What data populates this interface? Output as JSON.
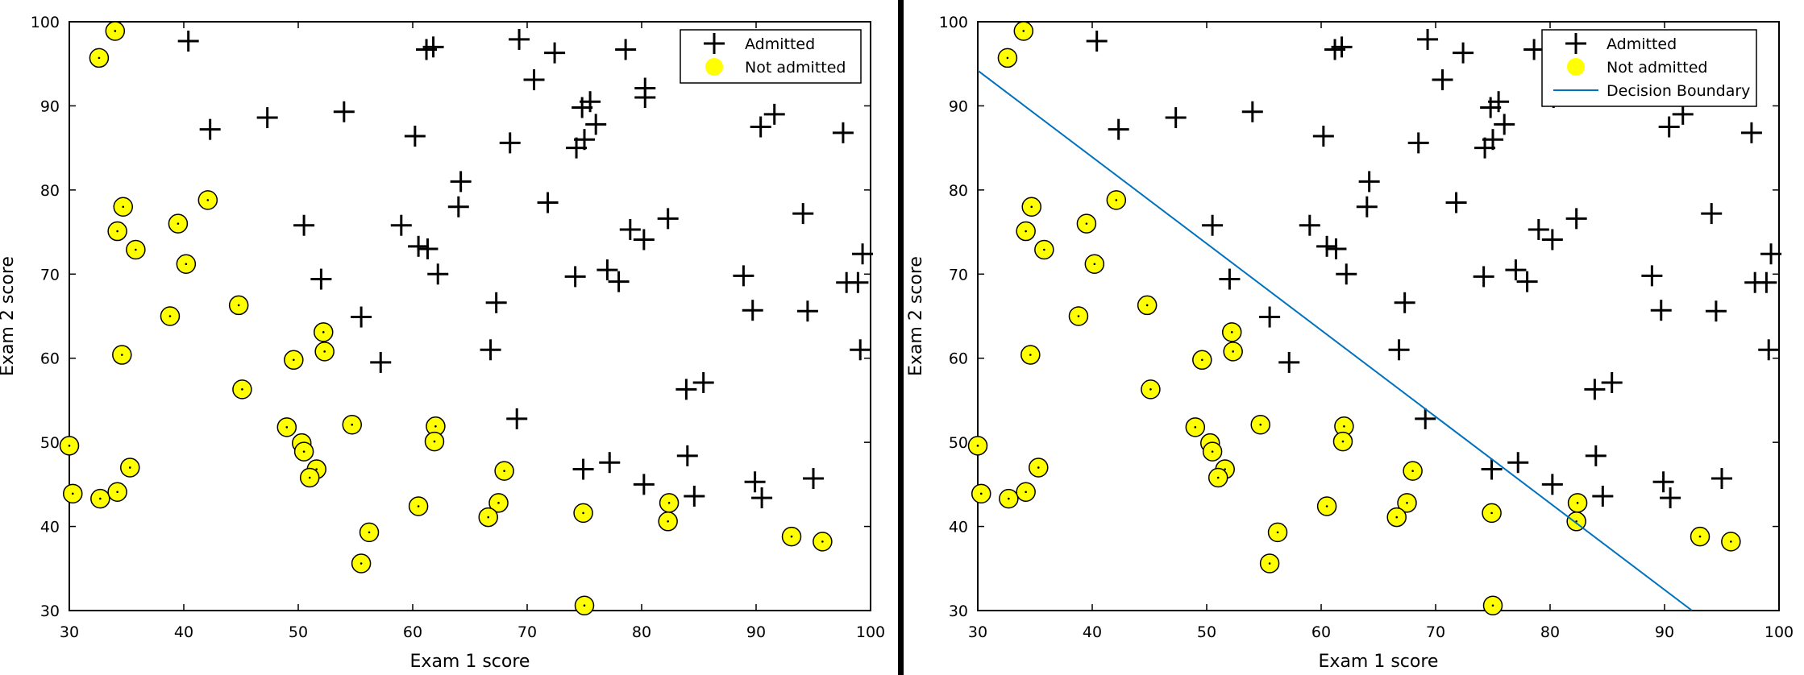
{
  "colors": {
    "admitted": "#000000",
    "not_admitted_fill": "#ffff00",
    "not_admitted_stroke": "#000000",
    "boundary": "#0072bd",
    "axes": "#000000",
    "background": "#ffffff",
    "divider": "#000000"
  },
  "chart_data": [
    {
      "type": "scatter",
      "xlabel": "Exam 1 score",
      "ylabel": "Exam 2 score",
      "xlim": [
        30,
        100
      ],
      "ylim": [
        30,
        100
      ],
      "xticks": [
        "30",
        "40",
        "50",
        "60",
        "70",
        "80",
        "90",
        "100"
      ],
      "yticks": [
        "30",
        "40",
        "50",
        "60",
        "70",
        "80",
        "90",
        "100"
      ],
      "grid": false,
      "legend_position": "top-right",
      "legend": [
        "Admitted",
        "Not admitted"
      ],
      "series": [
        {
          "name": "Admitted",
          "marker": "plus",
          "points": [
            [
              40.4,
              97.7
            ],
            [
              47.3,
              88.6
            ],
            [
              42.3,
              87.2
            ],
            [
              54.0,
              89.3
            ],
            [
              60.2,
              86.4
            ],
            [
              61.2,
              96.7
            ],
            [
              61.8,
              97.0
            ],
            [
              69.3,
              97.9
            ],
            [
              72.4,
              96.3
            ],
            [
              78.6,
              96.7
            ],
            [
              70.6,
              93.1
            ],
            [
              80.3,
              92.1
            ],
            [
              75.5,
              90.5
            ],
            [
              74.8,
              89.8
            ],
            [
              80.3,
              91.0
            ],
            [
              90.4,
              87.5
            ],
            [
              91.6,
              89.0
            ],
            [
              97.6,
              86.8
            ],
            [
              68.5,
              85.6
            ],
            [
              74.3,
              85.0
            ],
            [
              75.0,
              86.0
            ],
            [
              76.0,
              87.8
            ],
            [
              64.2,
              81.0
            ],
            [
              64.0,
              78.0
            ],
            [
              71.8,
              78.5
            ],
            [
              82.3,
              76.6
            ],
            [
              94.1,
              77.2
            ],
            [
              50.5,
              75.8
            ],
            [
              59.0,
              75.8
            ],
            [
              79.0,
              75.3
            ],
            [
              80.2,
              74.1
            ],
            [
              60.5,
              73.3
            ],
            [
              61.3,
              73.0
            ],
            [
              99.3,
              72.4
            ],
            [
              52.0,
              69.4
            ],
            [
              62.2,
              70.0
            ],
            [
              74.2,
              69.7
            ],
            [
              77.0,
              70.5
            ],
            [
              78.0,
              69.1
            ],
            [
              88.9,
              69.8
            ],
            [
              97.9,
              69.0
            ],
            [
              98.9,
              69.0
            ],
            [
              89.7,
              65.7
            ],
            [
              94.5,
              65.6
            ],
            [
              55.5,
              64.9
            ],
            [
              67.3,
              66.6
            ],
            [
              66.8,
              61.0
            ],
            [
              99.1,
              61.0
            ],
            [
              57.2,
              59.5
            ],
            [
              83.9,
              56.3
            ],
            [
              85.4,
              57.1
            ],
            [
              69.1,
              52.8
            ],
            [
              84.0,
              48.4
            ],
            [
              74.9,
              46.8
            ],
            [
              77.2,
              47.6
            ],
            [
              95.0,
              45.7
            ],
            [
              80.2,
              45.0
            ],
            [
              89.9,
              45.3
            ],
            [
              84.6,
              43.6
            ],
            [
              90.5,
              43.4
            ]
          ]
        },
        {
          "name": "Not admitted",
          "marker": "circle",
          "points": [
            [
              34.0,
              98.9
            ],
            [
              32.6,
              95.7
            ],
            [
              34.7,
              78.0
            ],
            [
              34.2,
              75.1
            ],
            [
              35.8,
              72.9
            ],
            [
              42.1,
              78.8
            ],
            [
              39.5,
              76.0
            ],
            [
              40.2,
              71.2
            ],
            [
              38.8,
              65.0
            ],
            [
              44.8,
              66.3
            ],
            [
              34.6,
              60.4
            ],
            [
              49.6,
              59.8
            ],
            [
              52.2,
              63.1
            ],
            [
              52.3,
              60.8
            ],
            [
              45.1,
              56.3
            ],
            [
              30.0,
              49.6
            ],
            [
              35.3,
              47.0
            ],
            [
              30.3,
              43.9
            ],
            [
              32.7,
              43.3
            ],
            [
              34.2,
              44.1
            ],
            [
              49.0,
              51.8
            ],
            [
              50.3,
              49.9
            ],
            [
              50.5,
              48.9
            ],
            [
              51.6,
              46.8
            ],
            [
              51.0,
              45.8
            ],
            [
              54.7,
              52.1
            ],
            [
              62.0,
              51.9
            ],
            [
              61.9,
              50.1
            ],
            [
              60.5,
              42.4
            ],
            [
              56.2,
              39.3
            ],
            [
              55.5,
              35.6
            ],
            [
              68.0,
              46.6
            ],
            [
              67.5,
              42.8
            ],
            [
              66.6,
              41.1
            ],
            [
              74.9,
              41.6
            ],
            [
              82.4,
              42.8
            ],
            [
              82.3,
              40.6
            ],
            [
              93.1,
              38.8
            ],
            [
              95.8,
              38.2
            ],
            [
              75.0,
              30.6
            ]
          ]
        }
      ]
    },
    {
      "type": "scatter",
      "xlabel": "Exam 1 score",
      "ylabel": "Exam 2 score",
      "xlim": [
        30,
        100
      ],
      "ylim": [
        30,
        100
      ],
      "xticks": [
        "30",
        "40",
        "50",
        "60",
        "70",
        "80",
        "90",
        "100"
      ],
      "yticks": [
        "30",
        "40",
        "50",
        "60",
        "70",
        "80",
        "90",
        "100"
      ],
      "grid": false,
      "legend_position": "top-right",
      "legend": [
        "Admitted",
        "Not admitted",
        "Decision Boundary"
      ],
      "series": [
        {
          "name": "Admitted",
          "marker": "plus",
          "points": [
            [
              40.4,
              97.7
            ],
            [
              47.3,
              88.6
            ],
            [
              42.3,
              87.2
            ],
            [
              54.0,
              89.3
            ],
            [
              60.2,
              86.4
            ],
            [
              61.2,
              96.7
            ],
            [
              61.8,
              97.0
            ],
            [
              69.3,
              97.9
            ],
            [
              72.4,
              96.3
            ],
            [
              78.6,
              96.7
            ],
            [
              70.6,
              93.1
            ],
            [
              80.3,
              92.1
            ],
            [
              75.5,
              90.5
            ],
            [
              74.8,
              89.8
            ],
            [
              80.3,
              91.0
            ],
            [
              90.4,
              87.5
            ],
            [
              91.6,
              89.0
            ],
            [
              97.6,
              86.8
            ],
            [
              68.5,
              85.6
            ],
            [
              74.3,
              85.0
            ],
            [
              75.0,
              86.0
            ],
            [
              76.0,
              87.8
            ],
            [
              64.2,
              81.0
            ],
            [
              64.0,
              78.0
            ],
            [
              71.8,
              78.5
            ],
            [
              82.3,
              76.6
            ],
            [
              94.1,
              77.2
            ],
            [
              50.5,
              75.8
            ],
            [
              59.0,
              75.8
            ],
            [
              79.0,
              75.3
            ],
            [
              80.2,
              74.1
            ],
            [
              60.5,
              73.3
            ],
            [
              61.3,
              73.0
            ],
            [
              99.3,
              72.4
            ],
            [
              52.0,
              69.4
            ],
            [
              62.2,
              70.0
            ],
            [
              74.2,
              69.7
            ],
            [
              77.0,
              70.5
            ],
            [
              78.0,
              69.1
            ],
            [
              88.9,
              69.8
            ],
            [
              97.9,
              69.0
            ],
            [
              98.9,
              69.0
            ],
            [
              89.7,
              65.7
            ],
            [
              94.5,
              65.6
            ],
            [
              55.5,
              64.9
            ],
            [
              67.3,
              66.6
            ],
            [
              66.8,
              61.0
            ],
            [
              99.1,
              61.0
            ],
            [
              57.2,
              59.5
            ],
            [
              83.9,
              56.3
            ],
            [
              85.4,
              57.1
            ],
            [
              69.1,
              52.8
            ],
            [
              84.0,
              48.4
            ],
            [
              74.9,
              46.8
            ],
            [
              77.2,
              47.6
            ],
            [
              95.0,
              45.7
            ],
            [
              80.2,
              45.0
            ],
            [
              89.9,
              45.3
            ],
            [
              84.6,
              43.6
            ],
            [
              90.5,
              43.4
            ]
          ]
        },
        {
          "name": "Not admitted",
          "marker": "circle",
          "points": [
            [
              34.0,
              98.9
            ],
            [
              32.6,
              95.7
            ],
            [
              34.7,
              78.0
            ],
            [
              34.2,
              75.1
            ],
            [
              35.8,
              72.9
            ],
            [
              42.1,
              78.8
            ],
            [
              39.5,
              76.0
            ],
            [
              40.2,
              71.2
            ],
            [
              38.8,
              65.0
            ],
            [
              44.8,
              66.3
            ],
            [
              34.6,
              60.4
            ],
            [
              49.6,
              59.8
            ],
            [
              52.2,
              63.1
            ],
            [
              52.3,
              60.8
            ],
            [
              45.1,
              56.3
            ],
            [
              30.0,
              49.6
            ],
            [
              35.3,
              47.0
            ],
            [
              30.3,
              43.9
            ],
            [
              32.7,
              43.3
            ],
            [
              34.2,
              44.1
            ],
            [
              49.0,
              51.8
            ],
            [
              50.3,
              49.9
            ],
            [
              50.5,
              48.9
            ],
            [
              51.6,
              46.8
            ],
            [
              51.0,
              45.8
            ],
            [
              54.7,
              52.1
            ],
            [
              62.0,
              51.9
            ],
            [
              61.9,
              50.1
            ],
            [
              60.5,
              42.4
            ],
            [
              56.2,
              39.3
            ],
            [
              55.5,
              35.6
            ],
            [
              68.0,
              46.6
            ],
            [
              67.5,
              42.8
            ],
            [
              66.6,
              41.1
            ],
            [
              74.9,
              41.6
            ],
            [
              82.4,
              42.8
            ],
            [
              82.3,
              40.6
            ],
            [
              93.1,
              38.8
            ],
            [
              95.8,
              38.2
            ],
            [
              75.0,
              30.6
            ]
          ]
        },
        {
          "name": "Decision Boundary",
          "marker": "line",
          "points": [
            [
              30,
              94.2
            ],
            [
              92.4,
              30
            ]
          ]
        }
      ]
    }
  ]
}
